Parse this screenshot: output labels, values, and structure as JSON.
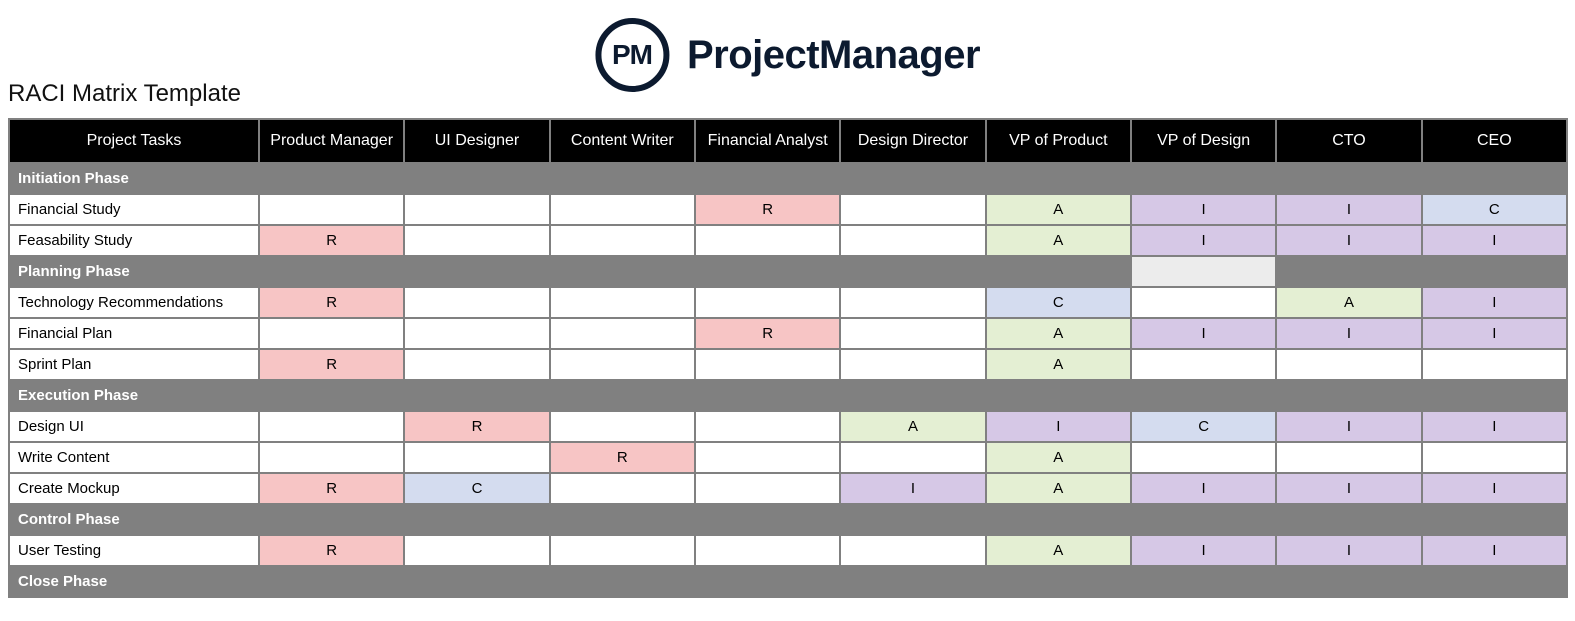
{
  "brand": {
    "logo_initials": "PM",
    "logo_text": "ProjectManager",
    "logo_color": "#0c1a2f"
  },
  "page_title": "RACI Matrix Template",
  "colors": {
    "header_bg": "#000000",
    "header_fg": "#ffffff",
    "phase_bg": "#808080",
    "phase_fg": "#ffffff",
    "cell_border": "#808080",
    "empty_bg": "#ffffff",
    "R": "#f7c5c5",
    "A": "#e4efd3",
    "C": "#d4dcef",
    "I": "#d6c8e6",
    "phase_alt_empty": "#ececec"
  },
  "columns": [
    "Project Tasks",
    "Product Manager",
    "UI Designer",
    "Content Writer",
    "Financial Analyst",
    "Design Director",
    "VP of Product",
    "VP of Design",
    "CTO",
    "CEO"
  ],
  "rows": [
    {
      "type": "phase",
      "label": "Initiation Phase"
    },
    {
      "type": "task",
      "label": "Financial Study",
      "cells": [
        "",
        "",
        "",
        "R",
        "",
        "A",
        "I",
        "I",
        "C"
      ]
    },
    {
      "type": "task",
      "label": "Feasability Study",
      "cells": [
        "R",
        "",
        "",
        "",
        "",
        "A",
        "I",
        "I",
        "I"
      ]
    },
    {
      "type": "phase",
      "label": "Planning Phase",
      "overrides": {
        "6": "phase_alt_empty"
      }
    },
    {
      "type": "task",
      "label": "Technology Recommendations",
      "cells": [
        "R",
        "",
        "",
        "",
        "",
        "C",
        "",
        "A",
        "I"
      ]
    },
    {
      "type": "task",
      "label": "Financial Plan",
      "cells": [
        "",
        "",
        "",
        "R",
        "",
        "A",
        "I",
        "I",
        "I"
      ]
    },
    {
      "type": "task",
      "label": "Sprint Plan",
      "cells": [
        "R",
        "",
        "",
        "",
        "",
        "A",
        "",
        "",
        ""
      ]
    },
    {
      "type": "phase",
      "label": "Execution Phase"
    },
    {
      "type": "task",
      "label": "Design UI",
      "cells": [
        "",
        "R",
        "",
        "",
        "A",
        "I",
        "C",
        "I",
        "I"
      ]
    },
    {
      "type": "task",
      "label": "Write Content",
      "cells": [
        "",
        "",
        "R",
        "",
        "",
        "A",
        "",
        "",
        ""
      ]
    },
    {
      "type": "task",
      "label": "Create Mockup",
      "cells": [
        "R",
        "C",
        "",
        "",
        "I",
        "A",
        "I",
        "I",
        "I"
      ]
    },
    {
      "type": "phase",
      "label": "Control Phase"
    },
    {
      "type": "task",
      "label": "User Testing",
      "cells": [
        "R",
        "",
        "",
        "",
        "",
        "A",
        "I",
        "I",
        "I"
      ]
    },
    {
      "type": "phase",
      "label": "Close Phase"
    }
  ]
}
